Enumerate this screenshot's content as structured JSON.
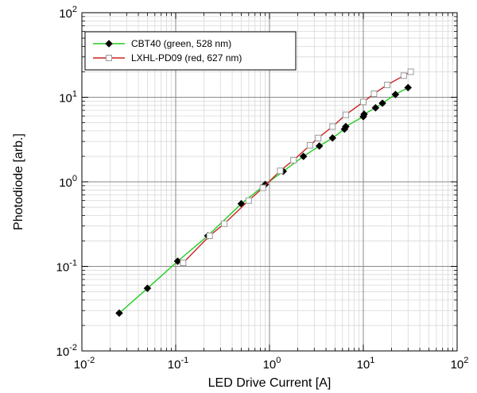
{
  "chart_data": {
    "type": "line",
    "title": "",
    "xlabel": "LED Drive Current  [A]",
    "ylabel": "Photodiode [arb.]",
    "xscale": "log",
    "yscale": "log",
    "xlim": [
      0.01,
      100
    ],
    "ylim": [
      0.01,
      100
    ],
    "grid": true,
    "legend_position": "top-left",
    "x_ticks": [
      {
        "value": 0.01,
        "base": "10",
        "exp": "-2"
      },
      {
        "value": 0.1,
        "base": "10",
        "exp": "-1"
      },
      {
        "value": 1,
        "base": "10",
        "exp": "0"
      },
      {
        "value": 10,
        "base": "10",
        "exp": "1"
      },
      {
        "value": 100,
        "base": "10",
        "exp": "2"
      }
    ],
    "y_ticks": [
      {
        "value": 0.01,
        "base": "10",
        "exp": "-2"
      },
      {
        "value": 0.1,
        "base": "10",
        "exp": "-1"
      },
      {
        "value": 1,
        "base": "10",
        "exp": "0"
      },
      {
        "value": 10,
        "base": "10",
        "exp": "1"
      },
      {
        "value": 100,
        "base": "10",
        "exp": "2"
      }
    ],
    "series": [
      {
        "name": "CBT40 (green, 528 nm)",
        "line_color": "#22cc22",
        "marker": "filled-diamond",
        "marker_color": "#000000",
        "x": [
          0.025,
          0.05,
          0.105,
          0.22,
          0.5,
          0.9,
          1.4,
          2.3,
          3.4,
          4.7,
          6.3,
          6.5,
          10.0,
          10.2,
          13.5,
          16.0,
          22.0,
          30.0
        ],
        "y": [
          0.028,
          0.055,
          0.115,
          0.23,
          0.55,
          0.93,
          1.33,
          2.0,
          2.65,
          3.3,
          4.2,
          4.5,
          5.9,
          6.3,
          7.5,
          8.5,
          10.8,
          13.0
        ]
      },
      {
        "name": "LXHL-PD09 (red, 627 nm)",
        "line_color": "#cc2222",
        "marker": "open-square",
        "marker_color": "#999999",
        "x": [
          0.12,
          0.23,
          0.33,
          0.6,
          0.85,
          1.3,
          1.8,
          2.7,
          3.3,
          4.7,
          6.5,
          10.0,
          13.0,
          18.0,
          27.0,
          32.0
        ],
        "y": [
          0.11,
          0.23,
          0.32,
          0.6,
          0.85,
          1.35,
          1.8,
          2.7,
          3.3,
          4.5,
          6.2,
          8.8,
          11.0,
          14.0,
          18.0,
          20.0
        ]
      }
    ]
  }
}
